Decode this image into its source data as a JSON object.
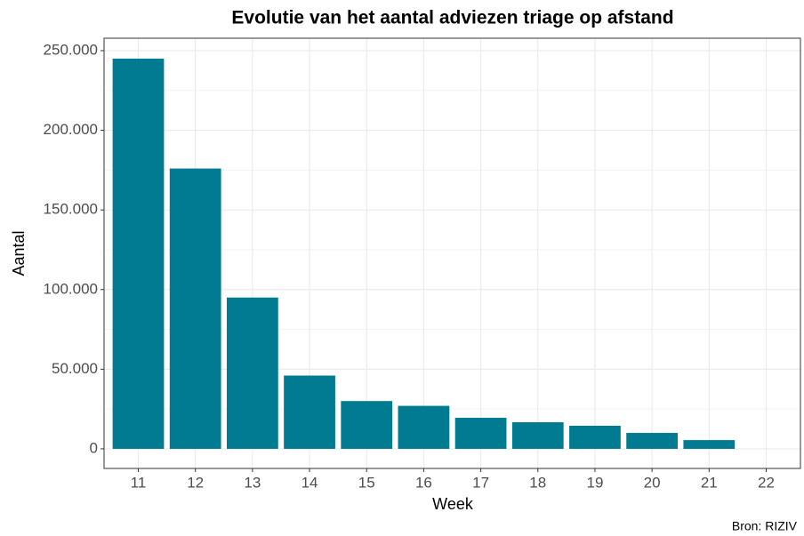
{
  "chart_data": {
    "type": "bar",
    "title": "Evolutie van het aantal adviezen triage op afstand",
    "x_label": "Week",
    "y_label": "Aantal",
    "caption": "Bron: RIZIV",
    "x": [
      11,
      12,
      13,
      14,
      15,
      16,
      17,
      18,
      19,
      20,
      21
    ],
    "values": [
      245000,
      176000,
      95000,
      46000,
      30000,
      27000,
      19500,
      16700,
      14500,
      10000,
      5500
    ],
    "color": "#007b91",
    "bar_width": 0.9,
    "xlim": [
      10.4,
      22.6
    ],
    "xticks": [
      11,
      12,
      13,
      14,
      15,
      16,
      17,
      18,
      19,
      20,
      21,
      22
    ],
    "ylim": [
      -12300,
      257800
    ],
    "yticks": [
      0,
      {
        "value": 50000,
        "label": "50.000"
      },
      {
        "value": 100000,
        "label": "100.000"
      },
      {
        "value": 150000,
        "label": "150.000"
      },
      {
        "value": 200000,
        "label": "200.000"
      },
      {
        "value": 250000,
        "label": "250.000"
      }
    ],
    "y_minor_grid": [
      25000,
      75000,
      125000,
      175000,
      225000
    ],
    "grid": true
  }
}
